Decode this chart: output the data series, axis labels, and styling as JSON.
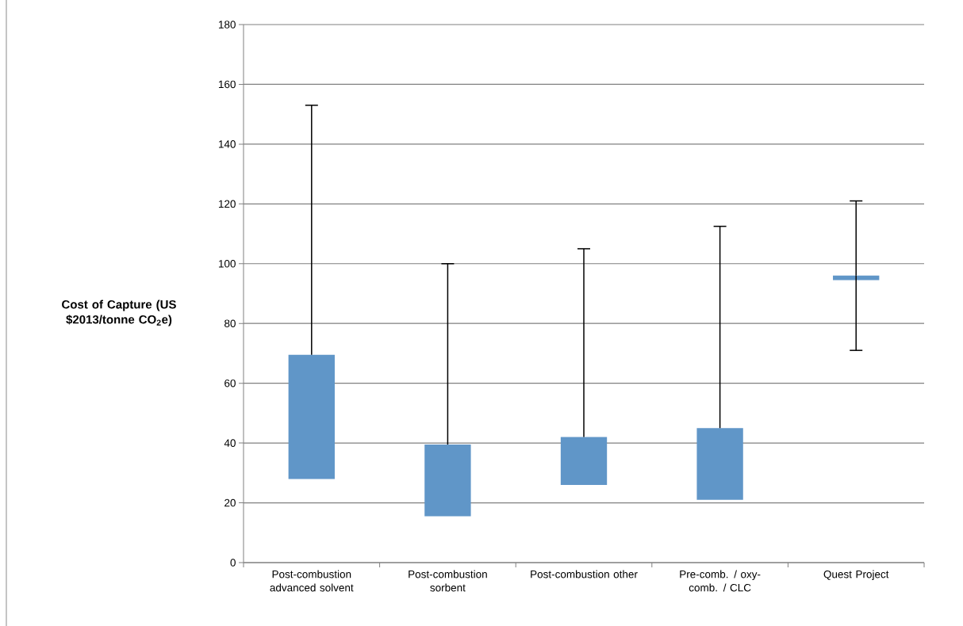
{
  "chart_data": {
    "type": "bar",
    "ylabel": "Cost of Capture (US $2013/tonne CO$_{2}$e)",
    "categories": [
      "Post-combustion advanced solvent",
      "Post-combustion sorbent",
      "Post-combustion other",
      "Pre-comb. / oxy-comb. / CLC",
      "Quest Project"
    ],
    "base": [
      28,
      15.5,
      26,
      21,
      94.5
    ],
    "values": [
      41.5,
      24,
      16,
      24,
      1.5
    ],
    "errors": [
      [
        69.5,
        153
      ],
      [
        39.5,
        100
      ],
      [
        42,
        105
      ],
      [
        45,
        112.5
      ],
      [
        71,
        121
      ]
    ],
    "color": "#6096c8",
    "ylim": [
      0,
      180
    ],
    "yticks": [
      0,
      20,
      40,
      60,
      80,
      100,
      120,
      140,
      160,
      180
    ],
    "grid": "y"
  }
}
